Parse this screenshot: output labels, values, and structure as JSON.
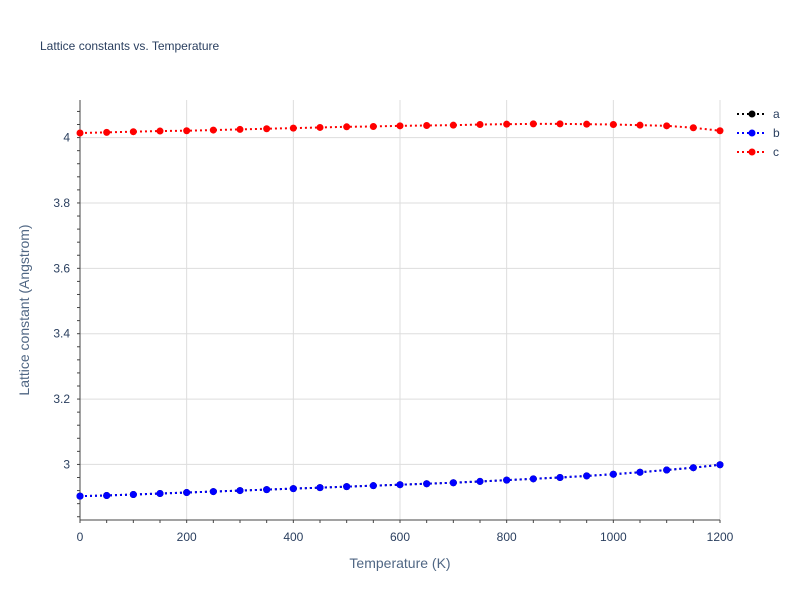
{
  "chart_data": {
    "type": "line",
    "title": "Lattice constants vs. Temperature",
    "xlabel": "Temperature (K)",
    "ylabel": "Lattice constant (Angstrom)",
    "xlim": [
      0,
      1200
    ],
    "ylim": [
      2.83,
      4.115
    ],
    "x_ticks": [
      0,
      200,
      400,
      600,
      800,
      1000,
      1200
    ],
    "y_ticks": [
      3,
      3.2,
      3.4,
      3.6,
      3.8,
      4
    ],
    "grid": true,
    "legend_position": "top-right",
    "x": [
      0,
      50,
      100,
      150,
      200,
      250,
      300,
      350,
      400,
      450,
      500,
      550,
      600,
      650,
      700,
      750,
      800,
      850,
      900,
      950,
      1000,
      1050,
      1100,
      1150,
      1200
    ],
    "series": [
      {
        "name": "a",
        "color": "#000000",
        "values": [
          2.903,
          2.905,
          2.908,
          2.911,
          2.914,
          2.917,
          2.92,
          2.923,
          2.926,
          2.929,
          2.932,
          2.935,
          2.938,
          2.941,
          2.944,
          2.948,
          2.952,
          2.956,
          2.96,
          2.965,
          2.97,
          2.976,
          2.983,
          2.99,
          2.999
        ]
      },
      {
        "name": "b",
        "color": "#0000ff",
        "values": [
          2.903,
          2.905,
          2.908,
          2.911,
          2.914,
          2.917,
          2.92,
          2.923,
          2.926,
          2.929,
          2.932,
          2.935,
          2.938,
          2.941,
          2.944,
          2.948,
          2.952,
          2.956,
          2.96,
          2.965,
          2.97,
          2.976,
          2.983,
          2.99,
          2.999
        ]
      },
      {
        "name": "c",
        "color": "#ff0000",
        "values": [
          4.014,
          4.016,
          4.018,
          4.02,
          4.021,
          4.023,
          4.025,
          4.027,
          4.029,
          4.031,
          4.033,
          4.034,
          4.036,
          4.037,
          4.038,
          4.04,
          4.041,
          4.042,
          4.042,
          4.041,
          4.04,
          4.038,
          4.036,
          4.03,
          4.021
        ]
      }
    ]
  }
}
